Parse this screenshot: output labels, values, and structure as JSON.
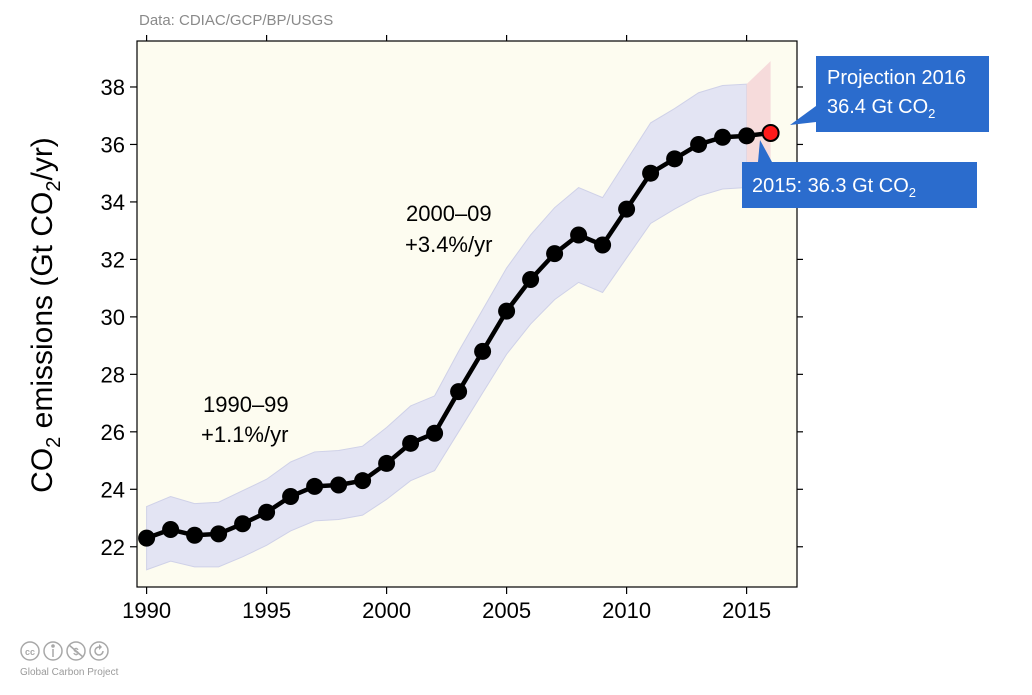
{
  "source_text": "Data: CDIAC/GCP/BP/USGS",
  "y_axis": {
    "prefix": "CO",
    "sub": "2",
    "mid": " emissions (Gt CO",
    "sub2": "2",
    "suffix": "/yr)"
  },
  "annotations": {
    "period1_range": "1990–99",
    "period1_rate": "+1.1%/yr",
    "period2_range": "2000–09",
    "period2_rate": "+3.4%/yr"
  },
  "callouts": {
    "projection_line1": "Projection 2016",
    "projection_line2_prefix": "36.4 Gt CO",
    "projection_line2_sub": "2",
    "last_prefix": "2015: 36.3 Gt CO",
    "last_sub": "2"
  },
  "footer": {
    "org": "Global Carbon Project",
    "license_icons": [
      "cc-icon",
      "by-icon",
      "nc-icon",
      "sa-icon"
    ]
  },
  "colors": {
    "plot_bg": "#fdfcf0",
    "uncertainty_band": "#e3e4f3",
    "projection_band": "#f6dbdb",
    "line": "#000000",
    "projection_point": "#ff1a1a",
    "callout_bg": "#2b6ccd"
  },
  "chart_data": {
    "type": "line",
    "title": "",
    "xlabel": "",
    "ylabel": "CO2 emissions (Gt CO2/yr)",
    "xlim": [
      1989.6,
      2017.1
    ],
    "ylim": [
      20.6,
      39.6
    ],
    "x_ticks": [
      1990,
      1995,
      2000,
      2005,
      2010,
      2015
    ],
    "y_ticks": [
      22,
      24,
      26,
      28,
      30,
      32,
      34,
      36,
      38
    ],
    "grid": false,
    "series": [
      {
        "x": [
          1990,
          1991,
          1992,
          1993,
          1994,
          1995,
          1996,
          1997,
          1998,
          1999,
          2000,
          2001,
          2002,
          2003,
          2004,
          2005,
          2006,
          2007,
          2008,
          2009,
          2010,
          2011,
          2012,
          2013,
          2014,
          2015
        ],
        "values": [
          22.3,
          22.6,
          22.4,
          22.45,
          22.8,
          23.2,
          23.75,
          24.1,
          24.15,
          24.3,
          24.9,
          25.6,
          25.95,
          27.4,
          28.8,
          30.2,
          31.3,
          32.2,
          32.85,
          32.5,
          33.75,
          35.0,
          35.5,
          36.0,
          36.25,
          36.3
        ]
      }
    ],
    "uncertainty_band": {
      "x": [
        1990,
        1991,
        1992,
        1993,
        1994,
        1995,
        1996,
        1997,
        1998,
        1999,
        2000,
        2001,
        2002,
        2003,
        2004,
        2005,
        2006,
        2007,
        2008,
        2009,
        2010,
        2011,
        2012,
        2013,
        2014,
        2015
      ],
      "lower": [
        21.2,
        21.5,
        21.3,
        21.3,
        21.65,
        22.05,
        22.55,
        22.9,
        22.95,
        23.1,
        23.65,
        24.3,
        24.65,
        26.0,
        27.35,
        28.7,
        29.75,
        30.6,
        31.2,
        30.85,
        32.05,
        33.25,
        33.75,
        34.2,
        34.45,
        34.5
      ],
      "upper": [
        23.4,
        23.75,
        23.5,
        23.55,
        23.95,
        24.35,
        24.95,
        25.3,
        25.35,
        25.5,
        26.15,
        26.9,
        27.25,
        28.8,
        30.25,
        31.7,
        32.85,
        33.8,
        34.5,
        34.15,
        35.45,
        36.75,
        37.25,
        37.8,
        38.05,
        38.1
      ]
    },
    "projection": {
      "x": 2016,
      "value": 36.4,
      "band_x": [
        2015,
        2016
      ],
      "band_lower": [
        34.5,
        34.2
      ],
      "band_upper": [
        38.1,
        38.9
      ]
    }
  }
}
